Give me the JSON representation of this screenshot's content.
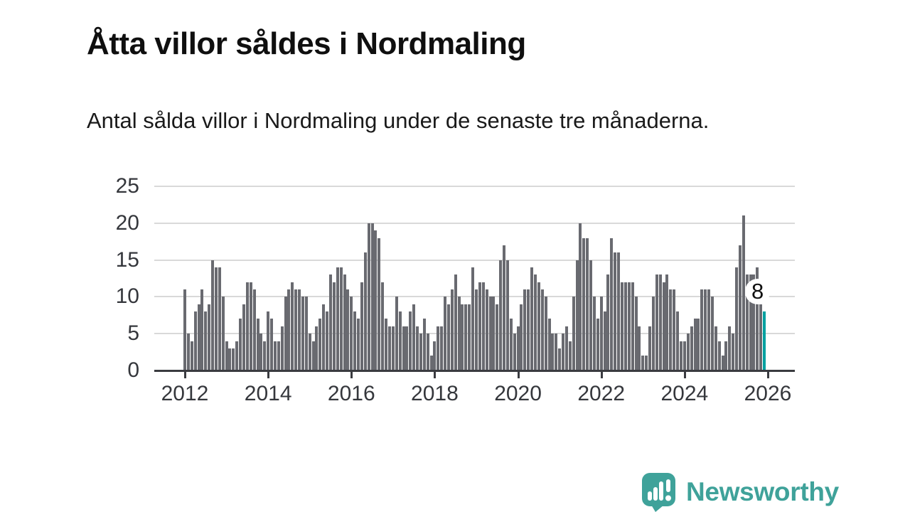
{
  "header": {
    "title": "Åtta villor såldes i Nordmaling",
    "subtitle": "Antal sålda villor i Nordmaling under de senaste tre månaderna."
  },
  "chart_data": {
    "type": "bar",
    "title": "Åtta villor såldes i Nordmaling",
    "subtitle": "Antal sålda villor i Nordmaling under de senaste tre månaderna.",
    "frequency": "monthly",
    "start": "2012-01",
    "end": "2025-12",
    "ylim": [
      0,
      25
    ],
    "yticks": [
      0,
      5,
      10,
      15,
      20,
      25
    ],
    "xticks": [
      "2012",
      "2014",
      "2016",
      "2018",
      "2020",
      "2022",
      "2024",
      "2026"
    ],
    "grid": true,
    "legend": "none",
    "bar_color": "#696a70",
    "series_by_year": [
      {
        "year": 2012,
        "values": [
          11,
          5,
          4,
          8,
          9,
          11,
          8,
          9,
          15,
          14,
          14,
          10
        ]
      },
      {
        "year": 2013,
        "values": [
          4,
          3,
          3,
          4,
          7,
          9,
          12,
          12,
          11,
          7,
          5,
          4
        ]
      },
      {
        "year": 2014,
        "values": [
          8,
          7,
          4,
          4,
          6,
          10,
          11,
          12,
          11,
          11,
          10,
          10
        ]
      },
      {
        "year": 2015,
        "values": [
          5,
          4,
          6,
          7,
          9,
          8,
          13,
          12,
          14,
          14,
          13,
          11
        ]
      },
      {
        "year": 2016,
        "values": [
          10,
          8,
          7,
          12,
          16,
          20,
          20,
          19,
          18,
          12,
          7,
          6
        ]
      },
      {
        "year": 2017,
        "values": [
          6,
          10,
          8,
          6,
          6,
          8,
          9,
          6,
          5,
          7,
          5,
          2
        ]
      },
      {
        "year": 2018,
        "values": [
          4,
          6,
          6,
          10,
          9,
          11,
          13,
          10,
          9,
          9,
          9,
          14
        ]
      },
      {
        "year": 2019,
        "values": [
          11,
          12,
          12,
          11,
          10,
          10,
          9,
          15,
          17,
          15,
          7,
          5
        ]
      },
      {
        "year": 2020,
        "values": [
          6,
          9,
          11,
          11,
          14,
          13,
          12,
          11,
          10,
          7,
          5,
          5
        ]
      },
      {
        "year": 2021,
        "values": [
          3,
          5,
          6,
          4,
          10,
          15,
          20,
          18,
          18,
          15,
          10,
          7
        ]
      },
      {
        "year": 2022,
        "values": [
          10,
          8,
          13,
          18,
          16,
          16,
          12,
          12,
          12,
          12,
          10,
          6
        ]
      },
      {
        "year": 2023,
        "values": [
          2,
          2,
          6,
          10,
          13,
          13,
          12,
          13,
          11,
          11,
          8,
          4
        ]
      },
      {
        "year": 2024,
        "values": [
          4,
          5,
          6,
          7,
          7,
          11,
          11,
          11,
          10,
          6,
          4,
          2
        ]
      },
      {
        "year": 2025,
        "values": [
          4,
          6,
          5,
          14,
          17,
          21,
          13,
          13,
          13,
          14,
          9,
          8
        ]
      }
    ],
    "highlight": {
      "index": 167,
      "month": "2025-12",
      "value": 8,
      "label": "8",
      "color": "#00a0a0"
    }
  },
  "footer": {
    "brand": "Newsworthy",
    "brand_color": "#3fa29a",
    "logo_icon": "newsworthy-chart-bubble-icon"
  }
}
